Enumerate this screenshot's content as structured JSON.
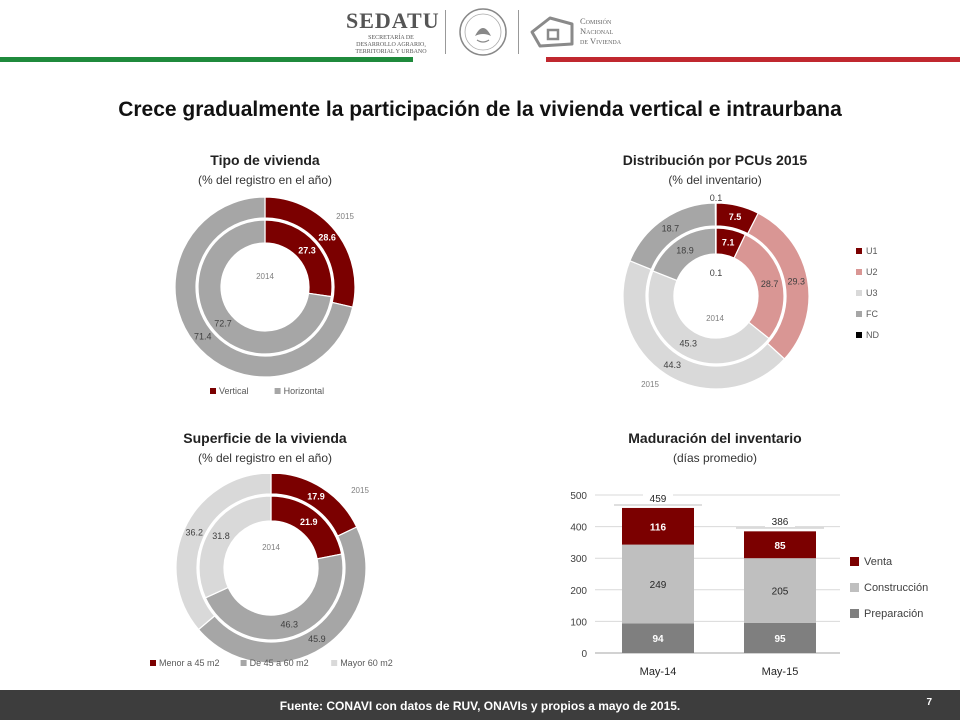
{
  "header": {
    "sedatu_name": "SEDATU",
    "sedatu_sub": [
      "SECRETARÍA DE",
      "DESARROLLO AGRARIO,",
      "TERRITORIAL Y URBANO"
    ],
    "conavi_lines": [
      "Comisión",
      "Nacional",
      "de Vivienda"
    ],
    "color_green": "#1f8a3c",
    "color_red": "#c0282f"
  },
  "title": "Crece gradualmente la participación de la vivienda vertical e intraurbana",
  "colors": {
    "dark_red": "#7b0000",
    "pink": "#d99694",
    "light_gray": "#d9d9d9",
    "mid_gray": "#a6a6a6",
    "black": "#000000",
    "gray_bar": "#bfbfbf",
    "dark_gray_bar": "#7f7f7f"
  },
  "chart_data": [
    {
      "type": "donut",
      "title": "Tipo de vivienda",
      "subtitle": "(% del registro en el año)",
      "rings": [
        {
          "name": "2014",
          "values": [
            27.3,
            72.7
          ],
          "labels": [
            "27.3",
            "72.7"
          ]
        },
        {
          "name": "2015",
          "values": [
            28.6,
            71.4
          ],
          "labels": [
            "28.6",
            "71.4"
          ]
        }
      ],
      "categories": [
        "Vertical",
        "Horizontal"
      ],
      "colors": [
        "#7b0000",
        "#a6a6a6"
      ],
      "legend": "bottom"
    },
    {
      "type": "donut",
      "title": "Distribución por PCUs 2015",
      "subtitle": "(% del inventario)",
      "rings": [
        {
          "name": "2014",
          "values": [
            7.1,
            28.7,
            45.3,
            18.9,
            0.1
          ],
          "labels": [
            "7.1",
            "28.7",
            "45.3",
            "18.9",
            "0.1"
          ]
        },
        {
          "name": "2015",
          "values": [
            7.5,
            29.3,
            44.3,
            18.7,
            0.1
          ],
          "labels": [
            "7.5",
            "29.3",
            "44.3",
            "18.7",
            "0.1"
          ]
        }
      ],
      "categories": [
        "U1",
        "U2",
        "U3",
        "FC",
        "ND"
      ],
      "colors": [
        "#7b0000",
        "#d99694",
        "#d9d9d9",
        "#a6a6a6",
        "#000000"
      ],
      "legend": "right"
    },
    {
      "type": "donut",
      "title": "Superficie de la vivienda",
      "subtitle": "(% del registro en el año)",
      "rings": [
        {
          "name": "2014",
          "values": [
            21.9,
            46.3,
            31.8
          ],
          "labels": [
            "21.9",
            "46.3",
            "31.8"
          ]
        },
        {
          "name": "2015",
          "values": [
            17.9,
            45.9,
            36.2
          ],
          "labels": [
            "17.9",
            "45.9",
            "36.2"
          ]
        }
      ],
      "categories": [
        "Menor a 45 m2",
        "De 45 a 60 m2",
        "Mayor 60 m2"
      ],
      "colors": [
        "#7b0000",
        "#a6a6a6",
        "#d9d9d9"
      ],
      "legend": "bottom"
    },
    {
      "type": "bar",
      "stacked": true,
      "title": "Maduración del inventario",
      "subtitle": "(días promedio)",
      "categories": [
        "May-14",
        "May-15"
      ],
      "series": [
        {
          "name": "Preparación",
          "values": [
            94,
            95
          ],
          "color": "#7f7f7f"
        },
        {
          "name": "Construcción",
          "values": [
            249,
            205
          ],
          "color": "#bfbfbf"
        },
        {
          "name": "Venta",
          "values": [
            116,
            85
          ],
          "color": "#7b0000"
        }
      ],
      "totals": [
        459,
        386
      ],
      "ylim": [
        0,
        500
      ],
      "yticks": [
        0,
        100,
        200,
        300,
        400,
        500
      ],
      "grid": true,
      "legend": "right"
    }
  ],
  "footer": {
    "source": "Fuente: CONAVI con datos de RUV, ONAVIs y propios a mayo de 2015.",
    "page": "7"
  }
}
